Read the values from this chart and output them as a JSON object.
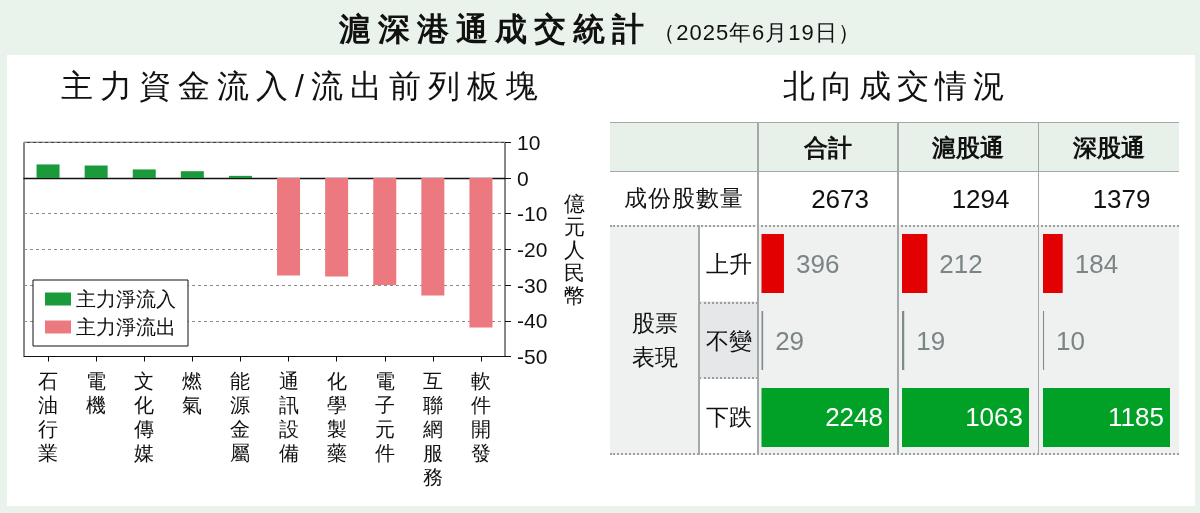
{
  "chart_data": [
    {
      "type": "other",
      "title": "滬深港通成交統計",
      "subtitle": "（2025年6月19日）"
    },
    {
      "type": "bar",
      "title": "主力資金流入/流出前列板塊",
      "ylabel": "億元人民幣",
      "categories": [
        "石油行業",
        "電機",
        "文化傳媒",
        "燃氣",
        "能源金屬",
        "通訊設備",
        "化學製藥",
        "電子元件",
        "互聯網服務",
        "軟件開發"
      ],
      "series": [
        {
          "name": "主力淨流入",
          "color": "#1b9a3c",
          "values": [
            3.8,
            3.5,
            2.4,
            1.9,
            0.6,
            null,
            null,
            null,
            null,
            null
          ]
        },
        {
          "name": "主力淨流出",
          "color": "#ec7880",
          "values": [
            null,
            null,
            null,
            null,
            null,
            -27.3,
            -27.6,
            -30.0,
            -32.9,
            -41.9
          ]
        }
      ],
      "ylim": [
        -50,
        10
      ],
      "yticks": [
        -50,
        -40,
        -30,
        -20,
        -10,
        0,
        10
      ],
      "grid": "y",
      "legend": "bottom left"
    },
    {
      "type": "other",
      "title": "北向成交情況",
      "annotations": [
        "成份股數量",
        "股票表現"
      ]
    },
    {
      "type": "bar",
      "orientation": "horizontal",
      "title": "合計",
      "annotations": [
        "2673"
      ],
      "categories": [
        "上升",
        "不變",
        "下跌"
      ],
      "values": [
        396,
        29,
        2248
      ],
      "colors": [
        "#e20000",
        "#7f8a8a",
        "#00a126"
      ],
      "data_labels": true,
      "tick_labels": "y"
    },
    {
      "type": "bar",
      "orientation": "horizontal",
      "title": "滬股通",
      "annotations": [
        "1294"
      ],
      "categories": [
        null,
        null,
        null
      ],
      "values": [
        212,
        19,
        1063
      ],
      "colors": [
        "#e20000",
        "#7f8a8a",
        "#00a126"
      ],
      "data_labels": true
    },
    {
      "type": "bar",
      "orientation": "horizontal",
      "title": "深股通",
      "annotations": [
        "1379"
      ],
      "categories": [
        null,
        null,
        null
      ],
      "values": [
        184,
        10,
        1185
      ],
      "colors": [
        "#e20000",
        "#7f8a8a",
        "#00a126"
      ],
      "data_labels": true
    }
  ]
}
